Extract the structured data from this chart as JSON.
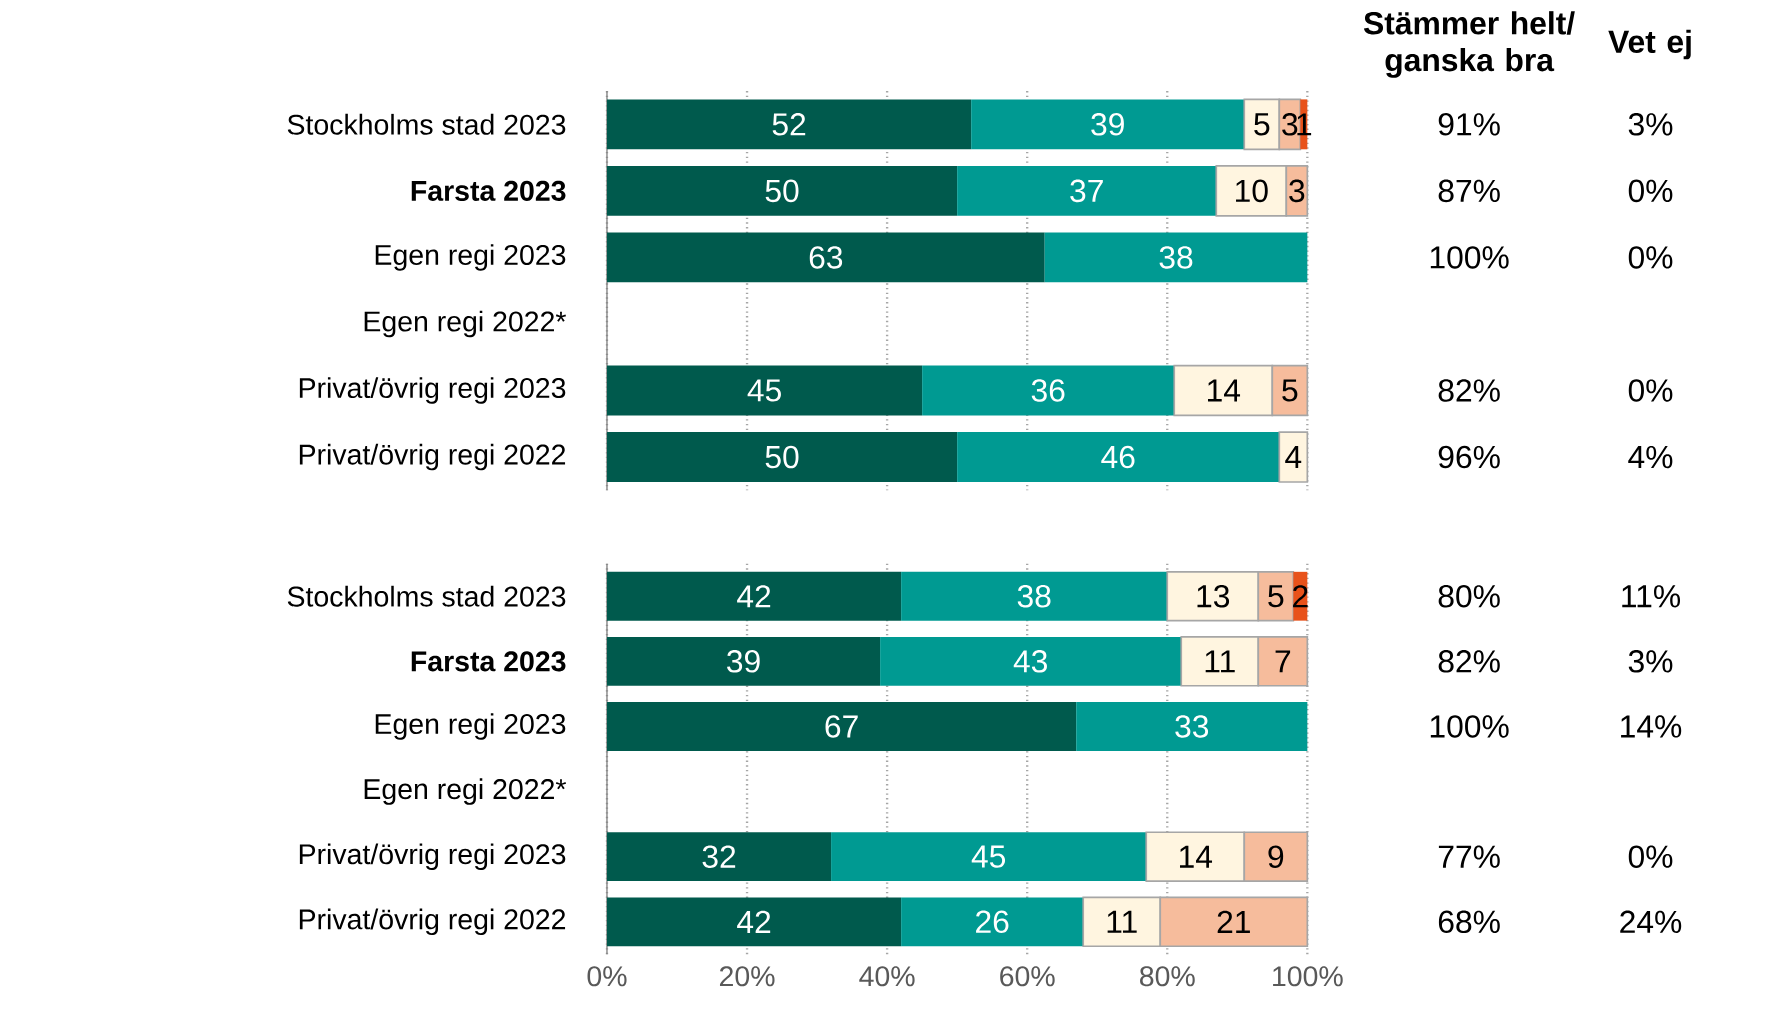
{
  "chart_data": [
    {
      "type": "bar",
      "orientation": "horizontal",
      "stacked": true,
      "grid": "x",
      "tick_labels": "y",
      "categories": [
        "Stockholms stad 2023",
        "**Farsta 2023**",
        "Egen regi 2023",
        "Egen regi 2022*",
        "Privat/övrig regi 2023",
        "Privat/övrig regi 2022"
      ],
      "xlim": [
        0,
        100
      ],
      "xticks": [
        {
          "value": 0,
          "label": null
        },
        {
          "value": 20,
          "label": null
        },
        {
          "value": 40,
          "label": null
        },
        {
          "value": 60,
          "label": null
        },
        {
          "value": 80,
          "label": null
        },
        {
          "value": 100,
          "label": null
        }
      ],
      "series": [
        {
          "color": "#005a4d",
          "values": [
            52,
            50,
            62.5,
            null,
            45,
            50
          ],
          "value_labels": [
            "52",
            "50",
            "63",
            null,
            "45",
            "50"
          ]
        },
        {
          "color": "#009a92",
          "values": [
            39,
            37,
            37.5,
            null,
            36,
            46
          ],
          "value_labels": [
            "39",
            "37",
            "38",
            null,
            "36",
            "46"
          ]
        },
        {
          "color": "#fff5e0",
          "values": [
            5,
            10,
            null,
            null,
            14,
            4
          ],
          "value_labels": [
            "5",
            "10",
            null,
            null,
            "14",
            "4"
          ]
        },
        {
          "color": "#f6bc9c",
          "values": [
            3,
            3,
            null,
            null,
            5,
            null
          ],
          "value_labels": [
            "3",
            "3",
            null,
            null,
            "5",
            null
          ]
        },
        {
          "color": "#e8521a",
          "values": [
            1,
            null,
            null,
            null,
            null,
            null
          ],
          "value_labels": [
            "1",
            null,
            null,
            null,
            null,
            null
          ]
        }
      ],
      "annotations": [
        "Stämmer helt/ ganska bra",
        "Vet ej",
        "91%",
        "3%",
        "87%",
        "0%",
        "100%",
        "0%",
        "82%",
        "0%",
        "96%",
        "4%"
      ]
    },
    {
      "type": "bar",
      "orientation": "horizontal",
      "stacked": true,
      "grid": "x",
      "categories": [
        "Stockholms stad 2023",
        "**Farsta 2023**",
        "Egen regi 2023",
        "Egen regi 2022*",
        "Privat/övrig regi 2023",
        "Privat/övrig regi 2022"
      ],
      "xlim": [
        0,
        100
      ],
      "xticks": [
        {
          "value": 0,
          "label": "0%"
        },
        {
          "value": 20,
          "label": "20%"
        },
        {
          "value": 40,
          "label": "40%"
        },
        {
          "value": 60,
          "label": "60%"
        },
        {
          "value": 80,
          "label": "80%"
        },
        {
          "value": 100,
          "label": "100%"
        }
      ],
      "series": [
        {
          "color": "#005a4d",
          "values": [
            42,
            39,
            67,
            null,
            32,
            42
          ],
          "value_labels": [
            "42",
            "39",
            "67",
            null,
            "32",
            "42"
          ]
        },
        {
          "color": "#009a92",
          "values": [
            38,
            43,
            33,
            null,
            45,
            26
          ],
          "value_labels": [
            "38",
            "43",
            "33",
            null,
            "45",
            "26"
          ]
        },
        {
          "color": "#fff5e0",
          "values": [
            13,
            11,
            null,
            null,
            14,
            11
          ],
          "value_labels": [
            "13",
            "11",
            null,
            null,
            "14",
            "11"
          ]
        },
        {
          "color": "#f6bc9c",
          "values": [
            5,
            7,
            null,
            null,
            9,
            21
          ],
          "value_labels": [
            "5",
            "7",
            null,
            null,
            "9",
            "21"
          ]
        },
        {
          "color": "#e8521a",
          "values": [
            2,
            null,
            null,
            null,
            null,
            null
          ],
          "value_labels": [
            "2",
            null,
            null,
            null,
            null,
            null
          ]
        }
      ],
      "annotations": [
        "80%",
        "11%",
        "82%",
        "3%",
        "100%",
        "14%",
        "77%",
        "0%",
        "68%",
        "24%"
      ]
    }
  ]
}
